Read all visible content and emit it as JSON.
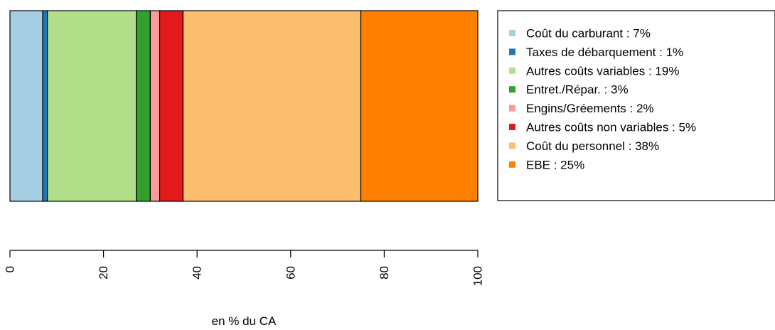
{
  "chart_data": {
    "type": "bar",
    "orientation": "horizontal-stacked",
    "segments": [
      {
        "label": "Coût du carburant : 7%",
        "value": 7,
        "color": "#A6CEE3"
      },
      {
        "label": "Taxes de débarquement : 1%",
        "value": 1,
        "color": "#1F78B4"
      },
      {
        "label": "Autres coûts variables : 19%",
        "value": 19,
        "color": "#B2DF8A"
      },
      {
        "label": "Entret./Répar. : 3%",
        "value": 3,
        "color": "#33A02C"
      },
      {
        "label": "Engins/Gréements : 2%",
        "value": 2,
        "color": "#FB9A99"
      },
      {
        "label": "Autres coûts non variables : 5%",
        "value": 5,
        "color": "#E31A1C"
      },
      {
        "label": "Coût du personnel : 38%",
        "value": 38,
        "color": "#FDBF6F"
      },
      {
        "label": "EBE : 25%",
        "value": 25,
        "color": "#FF7F00"
      }
    ],
    "xlim": [
      0,
      100
    ],
    "ticks": [
      "0",
      "20",
      "40",
      "60",
      "80",
      "100"
    ],
    "xlabel": "en % du CA",
    "legend_position": "right",
    "grid": false
  }
}
